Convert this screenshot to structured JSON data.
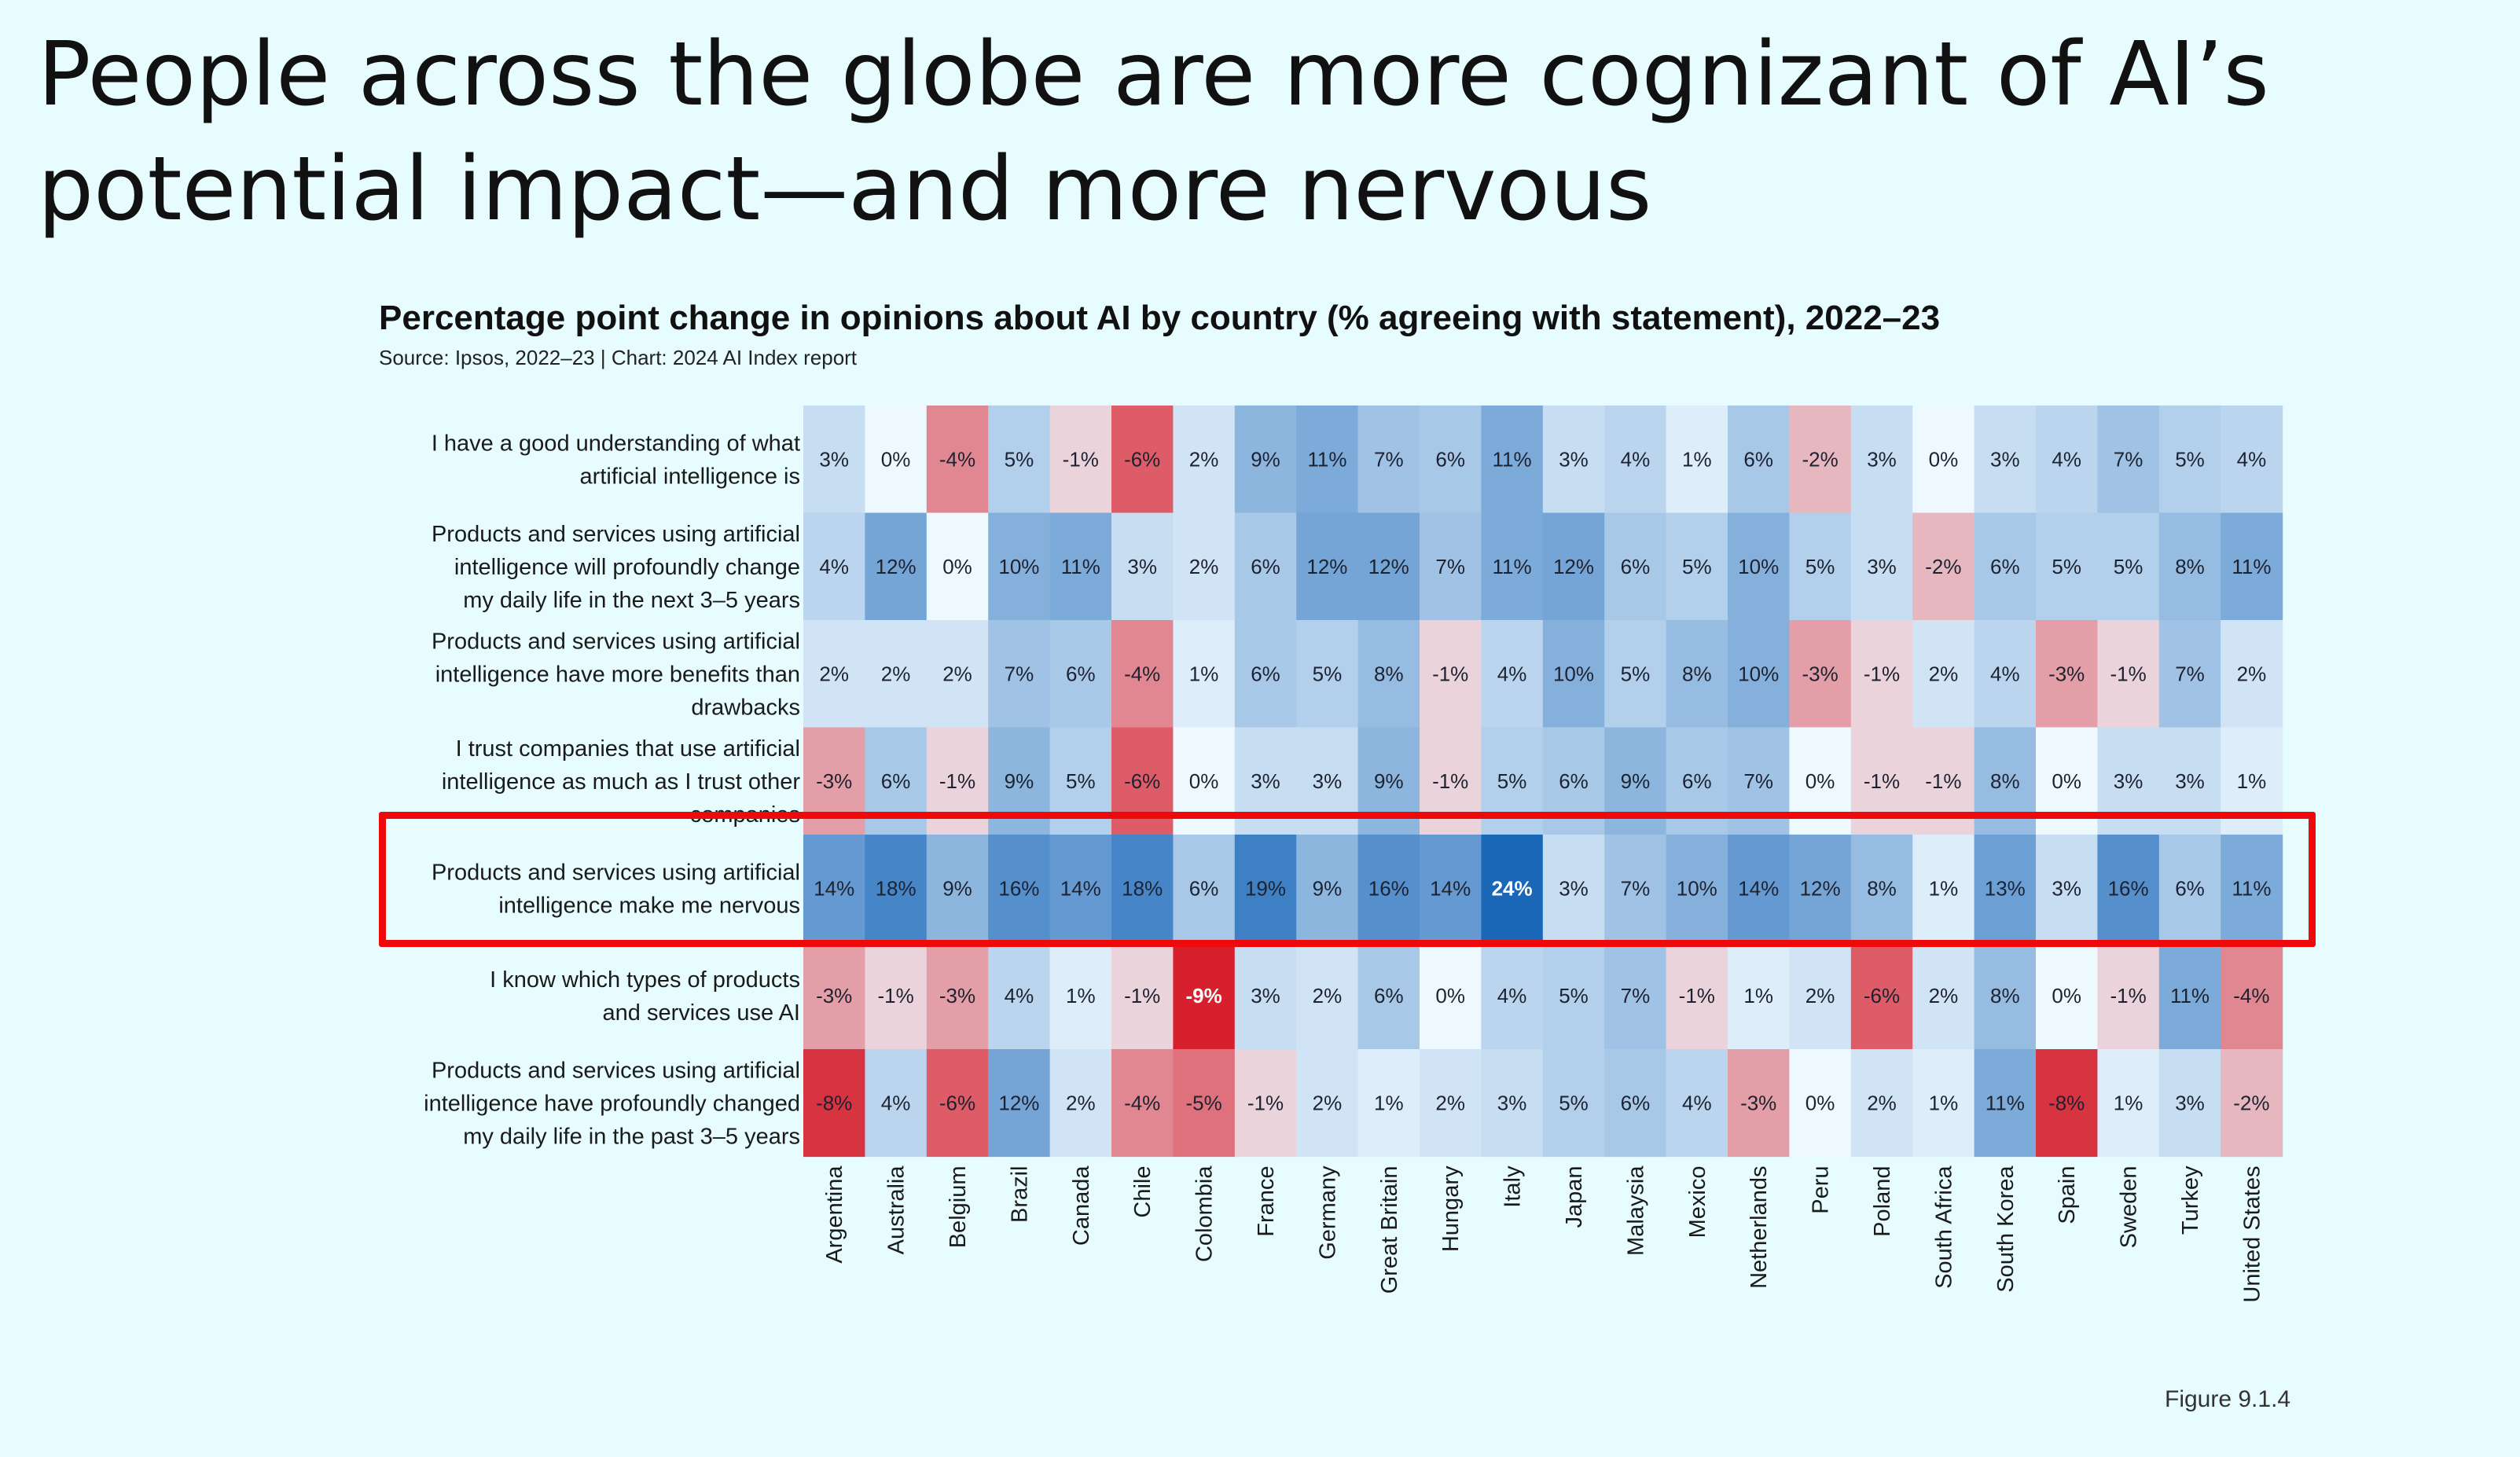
{
  "slide": {
    "title": "People across the globe are more cognizant of AI’s potential impact—and more nervous",
    "figure_label": "Figure 9.1.4"
  },
  "chart_data": {
    "type": "heatmap",
    "title": "Percentage point change in opinions about AI by country (% agreeing with statement), 2022–23",
    "subtitle": "Source: Ipsos, 2022–23 | Chart: 2024 AI Index report",
    "value_unit": "%",
    "color_scale": {
      "negative": "#d6202e",
      "zero": "#eef8ff",
      "positive": "#1a67b8",
      "min": -9,
      "max": 24
    },
    "highlighted_row": 4,
    "highlight_color": "#ee0a0a",
    "countries": [
      "Argentina",
      "Australia",
      "Belgium",
      "Brazil",
      "Canada",
      "Chile",
      "Colombia",
      "France",
      "Germany",
      "Great Britain",
      "Hungary",
      "Italy",
      "Japan",
      "Malaysia",
      "Mexico",
      "Netherlands",
      "Peru",
      "Poland",
      "South Africa",
      "South Korea",
      "Spain",
      "Sweden",
      "Turkey",
      "United States"
    ],
    "statements": [
      "I have a good understanding of what artificial intelligence is",
      "Products and services using artificial intelligence will profoundly change my daily life in the next 3–5 years",
      "Products and services using artificial intelligence have more benefits than drawbacks",
      "I trust companies that use artificial intelligence as much as I trust other companies",
      "Products and services using artificial intelligence make me nervous",
      "I know which types of products and services use AI",
      "Products and services using artificial intelligence have profoundly changed my daily life in the past 3–5 years"
    ],
    "values": [
      [
        3,
        0,
        -4,
        5,
        -1,
        -6,
        2,
        9,
        11,
        7,
        6,
        11,
        3,
        4,
        1,
        6,
        -2,
        3,
        0,
        3,
        4,
        7,
        5,
        4
      ],
      [
        4,
        12,
        0,
        10,
        11,
        3,
        2,
        6,
        12,
        12,
        7,
        11,
        12,
        6,
        5,
        10,
        5,
        3,
        -2,
        6,
        5,
        5,
        8,
        11
      ],
      [
        2,
        2,
        2,
        7,
        6,
        -4,
        1,
        6,
        5,
        8,
        -1,
        4,
        10,
        5,
        8,
        10,
        -3,
        -1,
        2,
        4,
        -3,
        -1,
        7,
        2
      ],
      [
        -3,
        6,
        -1,
        9,
        5,
        -6,
        0,
        3,
        3,
        9,
        -1,
        5,
        6,
        9,
        6,
        7,
        0,
        -1,
        -1,
        8,
        0,
        3,
        3,
        1
      ],
      [
        14,
        18,
        9,
        16,
        14,
        18,
        6,
        19,
        9,
        16,
        14,
        24,
        3,
        7,
        10,
        14,
        12,
        8,
        1,
        13,
        3,
        16,
        6,
        11
      ],
      [
        -3,
        -1,
        -3,
        4,
        1,
        -1,
        -9,
        3,
        2,
        6,
        0,
        4,
        5,
        7,
        -1,
        1,
        2,
        -6,
        2,
        8,
        0,
        -1,
        11,
        -4
      ],
      [
        -8,
        4,
        -6,
        12,
        2,
        -4,
        -5,
        -1,
        2,
        1,
        2,
        3,
        5,
        6,
        4,
        -3,
        0,
        2,
        1,
        11,
        -8,
        1,
        3,
        -2
      ]
    ]
  }
}
